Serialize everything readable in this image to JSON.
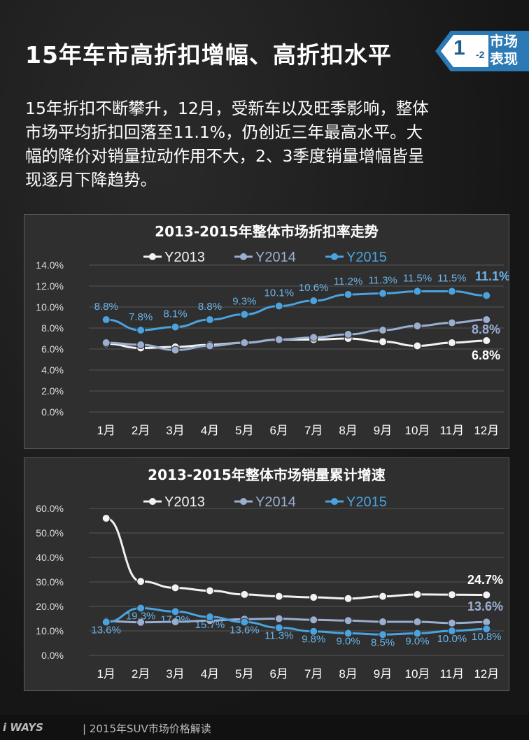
{
  "header": {
    "title": "15年车市高折扣增幅、高折扣水平",
    "badge_number": "1",
    "badge_sub": "-2",
    "badge_text_line1": "市场",
    "badge_text_line2": "表现"
  },
  "intro": {
    "line1": "15年折扣不断攀升，12月，受新车以及旺季影响，整体",
    "line2": "市场平均折扣回落至11.1%，仍创近三年最高水平。大",
    "line3": "幅的降价对销量拉动作用不大，2、3季度销量增幅皆呈",
    "line4": "现逐月下降趋势。"
  },
  "colors": {
    "y2013": "#f2f2f2",
    "y2014": "#9aaed0",
    "y2015": "#4aa3df",
    "label2015": "#6ab4e8"
  },
  "chart_data": [
    {
      "type": "line",
      "title": "2013-2015年整体市场折扣率走势",
      "categories": [
        "1月",
        "2月",
        "3月",
        "4月",
        "5月",
        "6月",
        "7月",
        "8月",
        "9月",
        "10月",
        "11月",
        "12月"
      ],
      "ylim": [
        0,
        14
      ],
      "yticks": [
        "0.0%",
        "2.0%",
        "4.0%",
        "6.0%",
        "8.0%",
        "10.0%",
        "12.0%",
        "14.0%"
      ],
      "legend_position": "top",
      "series": [
        {
          "name": "Y2013",
          "values": [
            6.5,
            6.1,
            6.2,
            6.4,
            6.6,
            6.9,
            6.9,
            7.0,
            6.7,
            6.3,
            6.6,
            6.8
          ],
          "label_last": "6.8%"
        },
        {
          "name": "Y2014",
          "values": [
            6.6,
            6.4,
            5.9,
            6.3,
            6.6,
            6.9,
            7.1,
            7.4,
            7.8,
            8.2,
            8.5,
            8.8
          ],
          "label_last": "8.8%"
        },
        {
          "name": "Y2015",
          "values": [
            8.8,
            7.8,
            8.1,
            8.8,
            9.3,
            10.1,
            10.6,
            11.2,
            11.3,
            11.5,
            11.5,
            11.1
          ],
          "labels": [
            "8.8%",
            "7.8%",
            "8.1%",
            "8.8%",
            "9.3%",
            "10.1%",
            "10.6%",
            "11.2%",
            "11.3%",
            "11.5%",
            "11.5%",
            "11.1%"
          ]
        }
      ]
    },
    {
      "type": "line",
      "title": "2013-2015年整体市场销量累计增速",
      "categories": [
        "1月",
        "2月",
        "3月",
        "4月",
        "5月",
        "6月",
        "7月",
        "8月",
        "9月",
        "10月",
        "11月",
        "12月"
      ],
      "ylim": [
        0,
        60
      ],
      "yticks": [
        "0.0%",
        "10.0%",
        "20.0%",
        "30.0%",
        "40.0%",
        "50.0%",
        "60.0%"
      ],
      "legend_position": "top",
      "series": [
        {
          "name": "Y2013",
          "values": [
            56.0,
            30.2,
            27.6,
            26.4,
            24.9,
            24.1,
            23.7,
            23.2,
            24.1,
            24.9,
            24.8,
            24.7
          ],
          "label_last": "24.7%"
        },
        {
          "name": "Y2014",
          "values": [
            14.0,
            13.5,
            13.7,
            14.2,
            14.8,
            15.0,
            14.5,
            14.2,
            13.7,
            13.7,
            13.2,
            13.6
          ],
          "label_last": "13.6%"
        },
        {
          "name": "Y2015",
          "values": [
            13.6,
            19.3,
            17.9,
            15.7,
            13.6,
            11.3,
            9.8,
            9.0,
            8.5,
            9.0,
            10.0,
            10.8
          ],
          "labels": [
            "13.6%",
            "19.3%",
            "17.9%",
            "15.7%",
            "13.6%",
            "11.3%",
            "9.8%",
            "9.0%",
            "8.5%",
            "9.0%",
            "10.0%",
            "10.8%"
          ]
        }
      ]
    }
  ],
  "footer": {
    "logo": "i  WAYS",
    "text": "|  2015年SUV市场价格解读"
  }
}
